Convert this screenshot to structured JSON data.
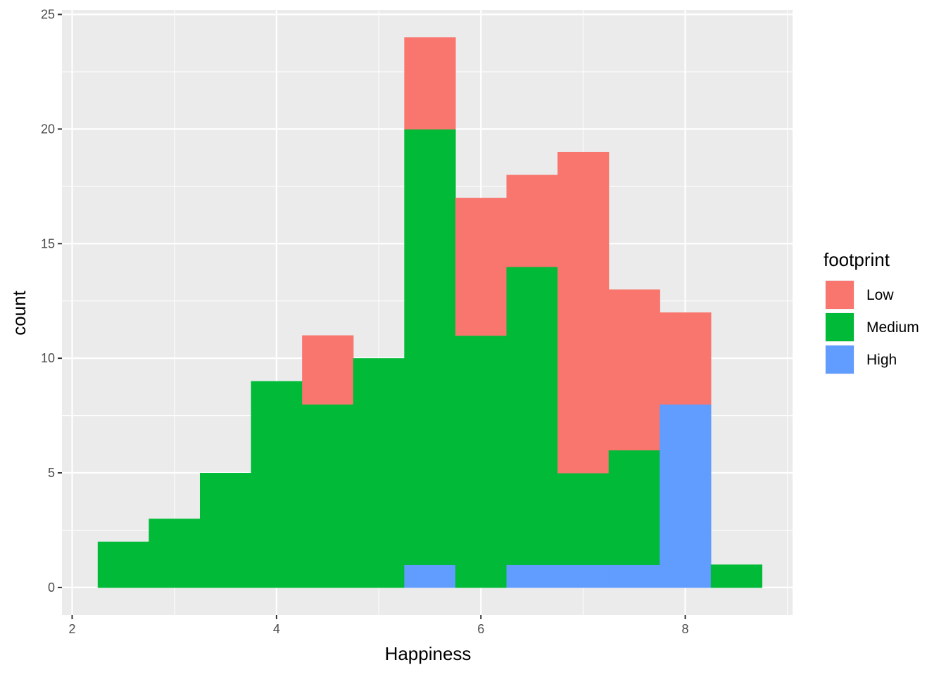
{
  "chart_data": {
    "type": "bar",
    "subtype": "stacked-histogram",
    "xlabel": "Happiness",
    "ylabel": "count",
    "xlim": [
      1.9,
      9.05
    ],
    "ylim": [
      -1.2,
      25.2
    ],
    "x_ticks": [
      2,
      4,
      6,
      8
    ],
    "y_ticks": [
      0,
      5,
      10,
      15,
      20,
      25
    ],
    "bin_width": 0.5,
    "bin_starts": [
      2.25,
      2.75,
      3.25,
      3.75,
      4.25,
      4.75,
      5.25,
      5.75,
      6.25,
      6.75,
      7.25,
      7.75,
      8.25
    ],
    "series": [
      {
        "name": "High",
        "color": "#619CFF",
        "values": [
          0,
          0,
          0,
          0,
          0,
          0,
          1,
          0,
          1,
          1,
          1,
          8,
          0
        ]
      },
      {
        "name": "Medium",
        "color": "#00BA38",
        "values": [
          2,
          3,
          5,
          9,
          8,
          10,
          19,
          11,
          13,
          4,
          5,
          0,
          1
        ]
      },
      {
        "name": "Low",
        "color": "#F8766D",
        "values": [
          0,
          0,
          0,
          0,
          3,
          0,
          4,
          6,
          4,
          14,
          7,
          4,
          0
        ]
      }
    ],
    "legend": {
      "title": "footprint",
      "placement": "right",
      "entries": [
        {
          "label": "Low",
          "color": "#F8766D"
        },
        {
          "label": "Medium",
          "color": "#00BA38"
        },
        {
          "label": "High",
          "color": "#619CFF"
        }
      ]
    },
    "grid": true,
    "panel_background": "#EBEBEB",
    "grid_color": "#FFFFFF"
  }
}
